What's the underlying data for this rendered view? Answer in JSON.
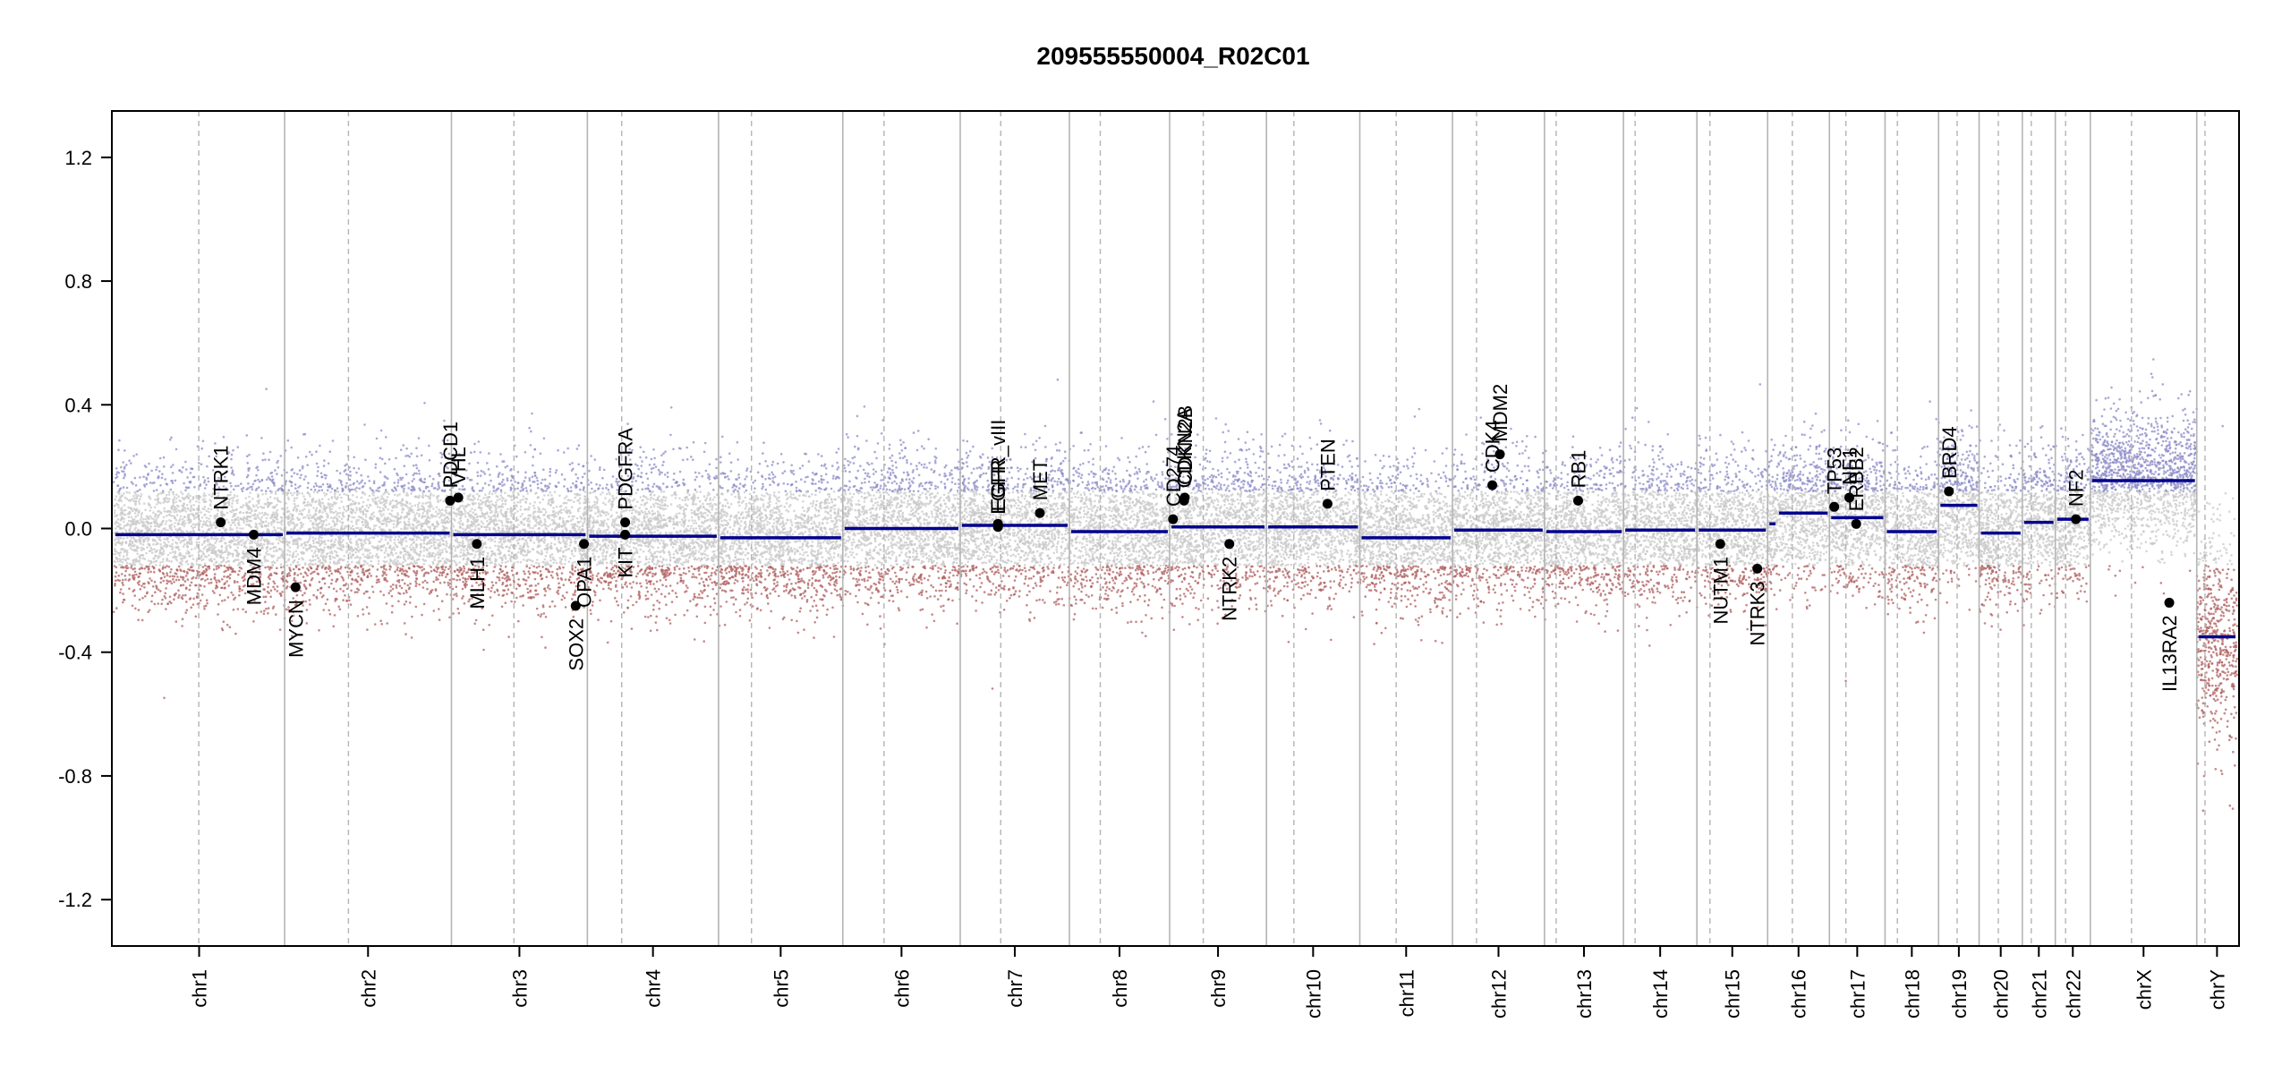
{
  "chart_data": {
    "type": "scatter",
    "title": "209555550004_R02C01",
    "xlabel": "",
    "ylabel": "",
    "ylim": [
      -1.35,
      1.35
    ],
    "yticks": [
      -1.2,
      -0.8,
      -0.4,
      0.0,
      0.4,
      0.8,
      1.2
    ],
    "ytick_labels": [
      "-1.2",
      "-0.8",
      "-0.4",
      "0.0",
      "0.4",
      "0.8",
      "1.2"
    ],
    "colors": {
      "gain": "#8c8cc8",
      "loss": "#b06060",
      "neutral": "#c8c8c8",
      "segment": "#00008b",
      "gene": "#000000",
      "boundary": "#b4b4b4"
    },
    "chromosomes": [
      {
        "name": "chr1",
        "size": 249,
        "centromere": 124,
        "segments": [
          {
            "start": 0,
            "end": 249,
            "value": -0.02
          }
        ]
      },
      {
        "name": "chr2",
        "size": 243,
        "centromere": 93,
        "segments": [
          {
            "start": 0,
            "end": 243,
            "value": -0.015
          }
        ]
      },
      {
        "name": "chr3",
        "size": 198,
        "centromere": 91,
        "segments": [
          {
            "start": 0,
            "end": 198,
            "value": -0.02
          }
        ]
      },
      {
        "name": "chr4",
        "size": 191,
        "centromere": 50,
        "segments": [
          {
            "start": 0,
            "end": 191,
            "value": -0.025
          }
        ]
      },
      {
        "name": "chr5",
        "size": 181,
        "centromere": 48,
        "segments": [
          {
            "start": 0,
            "end": 181,
            "value": -0.03
          }
        ]
      },
      {
        "name": "chr6",
        "size": 171,
        "centromere": 60,
        "segments": [
          {
            "start": 0,
            "end": 171,
            "value": 0.0
          }
        ]
      },
      {
        "name": "chr7",
        "size": 159,
        "centromere": 59,
        "segments": [
          {
            "start": 0,
            "end": 159,
            "value": 0.01
          }
        ]
      },
      {
        "name": "chr8",
        "size": 146,
        "centromere": 45,
        "segments": [
          {
            "start": 0,
            "end": 146,
            "value": -0.01
          }
        ]
      },
      {
        "name": "chr9",
        "size": 141,
        "centromere": 49,
        "segments": [
          {
            "start": 0,
            "end": 141,
            "value": 0.005
          }
        ]
      },
      {
        "name": "chr10",
        "size": 136,
        "centromere": 40,
        "segments": [
          {
            "start": 0,
            "end": 136,
            "value": 0.005
          }
        ]
      },
      {
        "name": "chr11",
        "size": 135,
        "centromere": 53,
        "segments": [
          {
            "start": 0,
            "end": 135,
            "value": -0.03
          }
        ]
      },
      {
        "name": "chr12",
        "size": 134,
        "centromere": 35,
        "segments": [
          {
            "start": 0,
            "end": 134,
            "value": -0.005
          }
        ]
      },
      {
        "name": "chr13",
        "size": 115,
        "centromere": 17,
        "segments": [
          {
            "start": 0,
            "end": 115,
            "value": -0.01
          }
        ]
      },
      {
        "name": "chr14",
        "size": 107,
        "centromere": 17,
        "segments": [
          {
            "start": 0,
            "end": 107,
            "value": -0.005
          }
        ]
      },
      {
        "name": "chr15",
        "size": 103,
        "centromere": 19,
        "segments": [
          {
            "start": 0,
            "end": 103,
            "value": -0.005
          }
        ]
      },
      {
        "name": "chr16",
        "size": 90,
        "centromere": 36,
        "segments": [
          {
            "start": 0,
            "end": 14,
            "value": 0.015
          },
          {
            "start": 14,
            "end": 90,
            "value": 0.05
          }
        ]
      },
      {
        "name": "chr17",
        "size": 81,
        "centromere": 24,
        "segments": [
          {
            "start": 0,
            "end": 81,
            "value": 0.035
          }
        ]
      },
      {
        "name": "chr18",
        "size": 78,
        "centromere": 18,
        "segments": [
          {
            "start": 0,
            "end": 78,
            "value": -0.01
          }
        ]
      },
      {
        "name": "chr19",
        "size": 59,
        "centromere": 27,
        "segments": [
          {
            "start": 0,
            "end": 59,
            "value": 0.075
          }
        ]
      },
      {
        "name": "chr20",
        "size": 63,
        "centromere": 28,
        "segments": [
          {
            "start": 0,
            "end": 63,
            "value": -0.015
          }
        ]
      },
      {
        "name": "chr21",
        "size": 48,
        "centromere": 13,
        "segments": [
          {
            "start": 0,
            "end": 48,
            "value": 0.02
          }
        ]
      },
      {
        "name": "chr22",
        "size": 51,
        "centromere": 15,
        "segments": [
          {
            "start": 0,
            "end": 51,
            "value": 0.03
          }
        ]
      },
      {
        "name": "chrX",
        "size": 155,
        "centromere": 60,
        "segments": [
          {
            "start": 0,
            "end": 155,
            "value": 0.155
          }
        ]
      },
      {
        "name": "chrY",
        "size": 59,
        "centromere": 12,
        "segments": [
          {
            "start": 0,
            "end": 59,
            "value": -0.35
          }
        ]
      }
    ],
    "genes": [
      {
        "name": "NTRK1",
        "chr": "chr1",
        "pos": 156,
        "value": 0.02,
        "label_side": "above"
      },
      {
        "name": "MDM4",
        "chr": "chr1",
        "pos": 204,
        "value": -0.02,
        "label_side": "below"
      },
      {
        "name": "MYCN",
        "chr": "chr2",
        "pos": 16,
        "value": -0.19,
        "label_side": "below"
      },
      {
        "name": "PDCD1",
        "chr": "chr2",
        "pos": 241,
        "value": 0.09,
        "label_side": "above"
      },
      {
        "name": "VHL",
        "chr": "chr3",
        "pos": 10,
        "value": 0.1,
        "label_side": "above"
      },
      {
        "name": "MLH1",
        "chr": "chr3",
        "pos": 37,
        "value": -0.05,
        "label_side": "below"
      },
      {
        "name": "SOX2",
        "chr": "chr3",
        "pos": 181,
        "value": -0.25,
        "label_side": "below"
      },
      {
        "name": "OPA1",
        "chr": "chr3",
        "pos": 193,
        "value": -0.05,
        "label_side": "below"
      },
      {
        "name": "PDGFRA",
        "chr": "chr4",
        "pos": 55,
        "value": 0.02,
        "label_side": "above"
      },
      {
        "name": "KIT",
        "chr": "chr4",
        "pos": 55,
        "value": -0.02,
        "label_side": "below"
      },
      {
        "name": "EGFR",
        "chr": "chr7",
        "pos": 55,
        "value": 0.005,
        "label_side": "above"
      },
      {
        "name": "EGFR_vIII",
        "chr": "chr7",
        "pos": 55,
        "value": 0.015,
        "label_side": "above"
      },
      {
        "name": "MET",
        "chr": "chr7",
        "pos": 116,
        "value": 0.05,
        "label_side": "above"
      },
      {
        "name": "CD274",
        "chr": "chr9",
        "pos": 5,
        "value": 0.03,
        "label_side": "above"
      },
      {
        "name": "CDKN2A",
        "chr": "chr9",
        "pos": 21,
        "value": 0.09,
        "label_side": "above"
      },
      {
        "name": "CDKN2B",
        "chr": "chr9",
        "pos": 22,
        "value": 0.1,
        "label_side": "above"
      },
      {
        "name": "NTRK2",
        "chr": "chr9",
        "pos": 87,
        "value": -0.05,
        "label_side": "below"
      },
      {
        "name": "PTEN",
        "chr": "chr10",
        "pos": 89,
        "value": 0.08,
        "label_side": "above"
      },
      {
        "name": "CDK4",
        "chr": "chr12",
        "pos": 58,
        "value": 0.14,
        "label_side": "above"
      },
      {
        "name": "MDM2",
        "chr": "chr12",
        "pos": 69,
        "value": 0.24,
        "label_side": "above"
      },
      {
        "name": "RB1",
        "chr": "chr13",
        "pos": 49,
        "value": 0.09,
        "label_side": "above"
      },
      {
        "name": "NUTM1",
        "chr": "chr15",
        "pos": 34,
        "value": -0.05,
        "label_side": "below"
      },
      {
        "name": "NTRK3",
        "chr": "chr15",
        "pos": 88,
        "value": -0.13,
        "label_side": "below"
      },
      {
        "name": "TP53",
        "chr": "chr17",
        "pos": 7,
        "value": 0.07,
        "label_side": "above"
      },
      {
        "name": "NF1",
        "chr": "chr17",
        "pos": 29,
        "value": 0.1,
        "label_side": "above"
      },
      {
        "name": "ERBB2",
        "chr": "chr17",
        "pos": 39,
        "value": 0.015,
        "label_side": "above"
      },
      {
        "name": "BRD4",
        "chr": "chr19",
        "pos": 15,
        "value": 0.12,
        "label_side": "above"
      },
      {
        "name": "NF2",
        "chr": "chr22",
        "pos": 30,
        "value": 0.03,
        "label_side": "above"
      },
      {
        "name": "IL13RA2",
        "chr": "chrX",
        "pos": 115,
        "value": -0.24,
        "label_side": "below"
      }
    ]
  }
}
